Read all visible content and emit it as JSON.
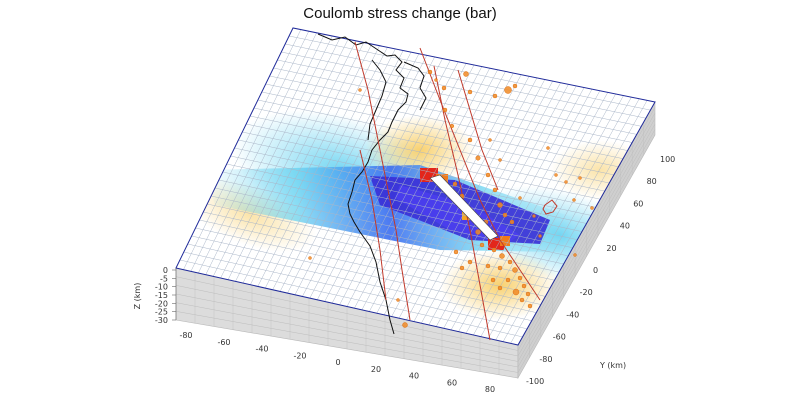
{
  "figure": {
    "title": "Coulomb stress change (bar)",
    "x_axis": {
      "label": "",
      "ticks": [
        "-80",
        "-60",
        "-40",
        "-20",
        "0",
        "20",
        "40",
        "60",
        "80"
      ]
    },
    "y_axis": {
      "label": "Y (km)",
      "ticks": [
        "100",
        "80",
        "60",
        "40",
        "20",
        "0",
        "-20",
        "-40",
        "-60",
        "-80",
        "-100"
      ]
    },
    "z_axis": {
      "label": "Z (km)",
      "ticks": [
        "0",
        "-5",
        "-10",
        "-15",
        "-20",
        "-25",
        "-30"
      ]
    },
    "colors": {
      "grid": "#aab6c8",
      "plane_border": "#1f2a9a",
      "box_side": "#d9d9d9",
      "box_side_dark": "#c8c8c8",
      "coast": "#111111",
      "faults": "#c0392b",
      "quakes": "#f08a24",
      "stress_positive": "#f4b400",
      "stress_positive_strong": "#e3261b",
      "stress_negative": "#3b6cf0",
      "stress_negative_strong": "#3a2fd6",
      "stress_negative_light": "#5fd0f0"
    },
    "fault_segment_color": "#ffffff"
  }
}
